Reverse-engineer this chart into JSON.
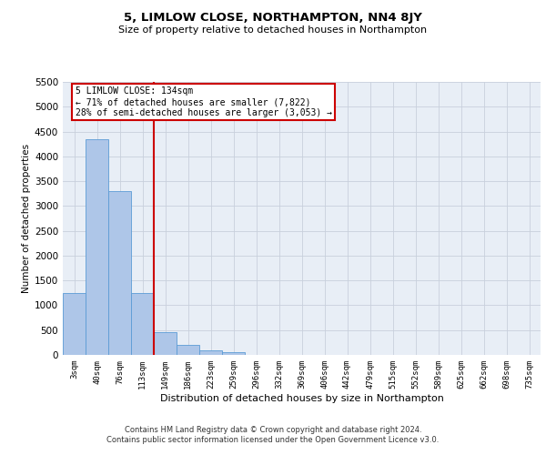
{
  "title": "5, LIMLOW CLOSE, NORTHAMPTON, NN4 8JY",
  "subtitle": "Size of property relative to detached houses in Northampton",
  "xlabel": "Distribution of detached houses by size in Northampton",
  "ylabel": "Number of detached properties",
  "footer_line1": "Contains HM Land Registry data © Crown copyright and database right 2024.",
  "footer_line2": "Contains public sector information licensed under the Open Government Licence v3.0.",
  "annotation_title": "5 LIMLOW CLOSE: 134sqm",
  "annotation_line1": "← 71% of detached houses are smaller (7,822)",
  "annotation_line2": "28% of semi-detached houses are larger (3,053) →",
  "categories": [
    "3sqm",
    "40sqm",
    "76sqm",
    "113sqm",
    "149sqm",
    "186sqm",
    "223sqm",
    "259sqm",
    "296sqm",
    "332sqm",
    "369sqm",
    "406sqm",
    "442sqm",
    "479sqm",
    "515sqm",
    "552sqm",
    "589sqm",
    "625sqm",
    "662sqm",
    "698sqm",
    "735sqm"
  ],
  "bar_values": [
    1250,
    4350,
    3300,
    1250,
    450,
    200,
    90,
    60,
    0,
    0,
    0,
    0,
    0,
    0,
    0,
    0,
    0,
    0,
    0,
    0,
    0
  ],
  "bar_color": "#aec6e8",
  "bar_edgecolor": "#5b9bd5",
  "vline_color": "#cc0000",
  "annotation_box_edgecolor": "#cc0000",
  "annotation_bg_color": "#ffffff",
  "ylim": [
    0,
    5500
  ],
  "yticks": [
    0,
    500,
    1000,
    1500,
    2000,
    2500,
    3000,
    3500,
    4000,
    4500,
    5000,
    5500
  ],
  "grid_color": "#c8d0dc",
  "background_color": "#e8eef6"
}
